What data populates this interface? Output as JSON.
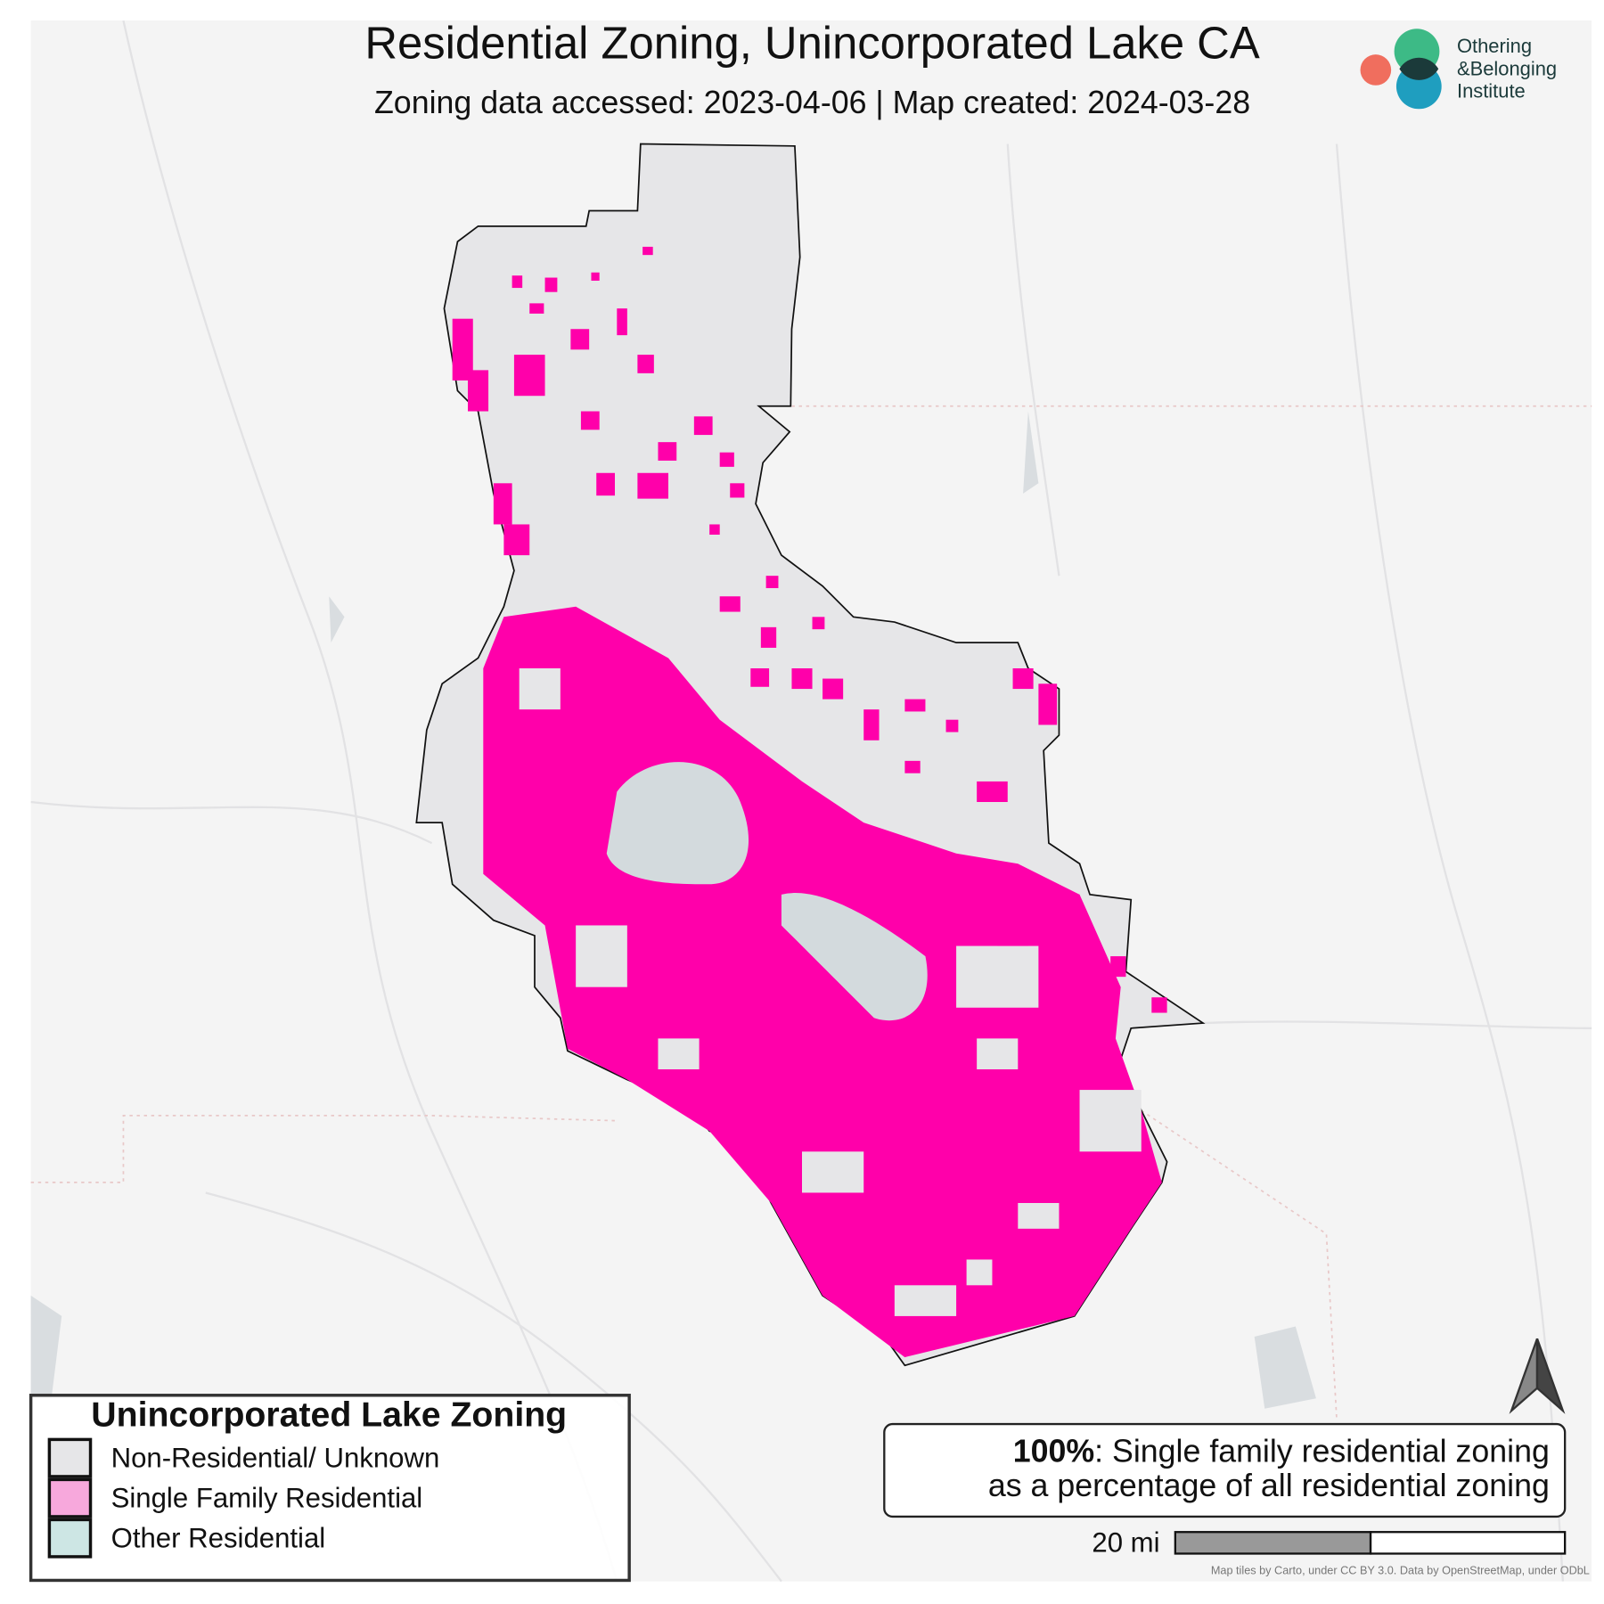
{
  "header": {
    "title": "Residential Zoning, Unincorporated Lake CA",
    "subtitle": "Zoning data accessed: 2023-04-06 | Map created: 2024-03-28"
  },
  "logo": {
    "lines": [
      "Othering",
      "&Belonging",
      "Institute"
    ]
  },
  "legend": {
    "title": "Unincorporated Lake Zoning",
    "items": [
      {
        "label": "Non-Residential/ Unknown",
        "color": "#e6e6e8"
      },
      {
        "label": "Single Family Residential",
        "color": "#f7a8dc"
      },
      {
        "label": "Other Residential",
        "color": "#cde6e4"
      }
    ]
  },
  "stat": {
    "highlight": "100%",
    "line1": ": Single family residential zoning",
    "line2": "as a percentage of all residential zoning"
  },
  "scale": {
    "label": "20 mi"
  },
  "attribution": "Map tiles by Carto, under CC BY 3.0. Data by OpenStreetMap, under ODbL"
}
